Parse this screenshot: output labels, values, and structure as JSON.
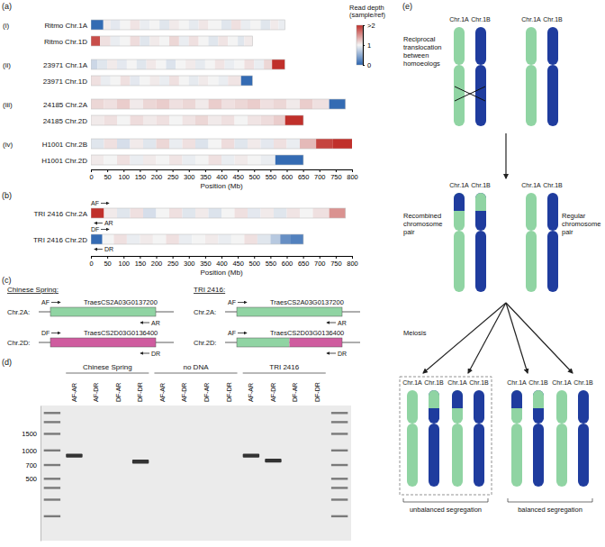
{
  "chart_data": [
    {
      "type": "heatmap",
      "title": "(a)",
      "xlim": [
        0,
        800
      ],
      "xticks": [
        0,
        50,
        100,
        150,
        200,
        250,
        300,
        350,
        400,
        450,
        500,
        550,
        600,
        650,
        700,
        750,
        800
      ],
      "xlabel": "Position (Mb)",
      "colorbar": {
        "title": [
          "Read depth",
          "(sample/ref)"
        ],
        "range": [
          0,
          2
        ],
        "ticks": [
          {
            "value": 2,
            "label": ">2"
          },
          1,
          0
        ],
        "colors": [
          "#2a64b0",
          "#f4f4f4",
          "#c0302b"
        ]
      },
      "rows": [
        {
          "group": "(i)",
          "label": "Ritmo Chr.1A",
          "bins": [
            0,
            38,
            60,
            90,
            120,
            150,
            180,
            210,
            240,
            270,
            300,
            330,
            360,
            400,
            430,
            460,
            490,
            520,
            550,
            575,
            594
          ],
          "values": [
            0.05,
            1.05,
            0.92,
            1.0,
            1.08,
            0.95,
            1.0,
            0.9,
            1.05,
            1.0,
            0.93,
            1.07,
            1.0,
            0.9,
            1.1,
            0.95,
            1.0,
            0.9,
            1.05,
            0.95
          ]
        },
        {
          "label": "Ritmo Chr.1D",
          "bins": [
            0,
            28,
            60,
            90,
            120,
            150,
            180,
            210,
            240,
            270,
            300,
            330,
            360,
            390,
            420,
            450,
            470,
            495
          ],
          "values": [
            1.85,
            1.1,
            0.95,
            1.0,
            1.12,
            0.9,
            1.05,
            1.0,
            1.15,
            0.95,
            1.1,
            1.0,
            0.9,
            1.08,
            1.0,
            0.9,
            1.05
          ]
        },
        {
          "group": "(ii)",
          "label": "23971 Chr.1A",
          "bins": [
            0,
            20,
            50,
            80,
            110,
            140,
            170,
            200,
            230,
            260,
            290,
            320,
            350,
            380,
            410,
            440,
            470,
            500,
            530,
            555,
            594
          ],
          "values": [
            0.8,
            0.9,
            1.05,
            0.92,
            1.0,
            0.9,
            1.06,
            1.0,
            0.88,
            1.0,
            1.05,
            0.93,
            1.0,
            1.08,
            0.95,
            1.0,
            1.1,
            0.95,
            1.15,
            2.3
          ]
        },
        {
          "label": "23971 Chr.1D",
          "bins": [
            0,
            30,
            60,
            90,
            120,
            150,
            180,
            210,
            240,
            270,
            300,
            330,
            360,
            390,
            420,
            460,
            495
          ],
          "values": [
            1.1,
            0.95,
            1.0,
            1.1,
            0.92,
            1.0,
            1.05,
            0.95,
            1.1,
            1.0,
            0.93,
            1.05,
            1.0,
            0.95,
            1.08,
            0.05
          ]
        },
        {
          "group": "(iii)",
          "label": "24185 Chr.2A",
          "bins": [
            0,
            40,
            80,
            120,
            160,
            200,
            240,
            280,
            320,
            360,
            400,
            440,
            480,
            520,
            560,
            600,
            640,
            680,
            730,
            780
          ],
          "values": [
            1.15,
            1.1,
            1.2,
            1.05,
            1.15,
            1.2,
            1.1,
            1.15,
            1.05,
            1.2,
            1.1,
            1.15,
            1.2,
            1.1,
            1.15,
            1.05,
            1.2,
            1.1,
            0.05
          ]
        },
        {
          "label": "24185 Chr.2D",
          "bins": [
            0,
            40,
            80,
            120,
            160,
            200,
            240,
            280,
            320,
            360,
            400,
            440,
            480,
            520,
            560,
            595,
            651
          ],
          "values": [
            1.05,
            1.1,
            1.0,
            1.12,
            1.05,
            1.1,
            1.0,
            1.08,
            1.15,
            1.05,
            1.1,
            1.0,
            1.08,
            1.12,
            1.2,
            2.2
          ]
        },
        {
          "group": "(iv)",
          "label": "H1001 Chr.2B",
          "bins": [
            0,
            40,
            80,
            120,
            160,
            200,
            240,
            280,
            320,
            360,
            400,
            440,
            480,
            520,
            560,
            600,
            640,
            690,
            740,
            801
          ],
          "values": [
            0.9,
            1.1,
            0.85,
            1.05,
            0.9,
            1.15,
            0.95,
            1.1,
            0.88,
            1.0,
            1.12,
            0.9,
            1.05,
            0.92,
            1.1,
            0.95,
            1.3,
            1.9,
            2.1
          ]
        },
        {
          "label": "H1001 Chr.2D",
          "bins": [
            0,
            40,
            80,
            120,
            160,
            200,
            240,
            280,
            320,
            360,
            400,
            440,
            480,
            520,
            565,
            651
          ],
          "values": [
            1.05,
            1.0,
            1.1,
            0.95,
            1.05,
            1.0,
            1.08,
            0.95,
            1.0,
            1.1,
            0.95,
            1.05,
            1.0,
            0.95,
            0.05
          ]
        }
      ]
    },
    {
      "type": "heatmap",
      "title": "(b)",
      "xlim": [
        0,
        800
      ],
      "xticks": [
        0,
        50,
        100,
        150,
        200,
        250,
        300,
        350,
        400,
        450,
        500,
        550,
        600,
        650,
        700,
        750,
        800
      ],
      "xlabel": "Position (Mb)",
      "rows": [
        {
          "label": "TRI 2416 Chr.2A",
          "bins": [
            0,
            40,
            80,
            120,
            160,
            200,
            240,
            280,
            320,
            360,
            400,
            440,
            480,
            520,
            560,
            600,
            640,
            680,
            730,
            780
          ],
          "values": [
            2.2,
            1.05,
            0.9,
            1.1,
            0.85,
            1.0,
            1.1,
            0.9,
            1.05,
            0.88,
            1.0,
            1.1,
            0.92,
            1.05,
            0.9,
            1.08,
            1.0,
            1.1,
            1.5
          ]
        },
        {
          "label": "TRI 2416 Chr.2D",
          "bins": [
            0,
            35,
            70,
            110,
            150,
            190,
            230,
            270,
            310,
            350,
            390,
            430,
            470,
            510,
            550,
            580,
            610,
            651
          ],
          "values": [
            0.05,
            1.0,
            1.1,
            0.95,
            1.05,
            1.0,
            1.1,
            0.95,
            1.0,
            1.05,
            0.95,
            1.0,
            1.1,
            0.9,
            0.7,
            0.3,
            0.2
          ]
        }
      ],
      "primers": [
        {
          "label": "AF",
          "row": 0,
          "position": 0,
          "direction": "forward"
        },
        {
          "label": "AR",
          "row": 0,
          "position": 8,
          "direction": "reverse"
        },
        {
          "label": "DF",
          "row": 1,
          "position": 0,
          "direction": "forward"
        },
        {
          "label": "DR",
          "row": 1,
          "position": 8,
          "direction": "reverse"
        }
      ]
    },
    {
      "type": "gel",
      "title": "(d)",
      "categories": [
        null,
        "AF-AR",
        "AF-DR",
        "DF-AR",
        "DF-DR",
        "AF-AR",
        "AF-DR",
        "DF-AR",
        "DF-DR",
        "AF-AR",
        "AF-DR",
        "DF-AR",
        "DF-DR",
        null
      ],
      "groups": [
        {
          "label": "Chinese Spring",
          "lanes": [
            1,
            4
          ]
        },
        {
          "label": "no DNA",
          "lanes": [
            5,
            8
          ]
        },
        {
          "label": "TRI 2416",
          "lanes": [
            9,
            12
          ]
        }
      ],
      "log": "y",
      "ylim": [
        3000,
        110
      ],
      "yticks": [
        1500,
        1000,
        700,
        500
      ],
      "ladder": {
        "lanes": [
          0,
          13
        ],
        "sizes": [
          2500,
          2000,
          1500,
          1000,
          700,
          500,
          400,
          300,
          200
        ]
      },
      "bands": {
        "lanes": [
          1,
          4,
          9,
          10
        ],
        "values": [
          880,
          760,
          880,
          780
        ]
      }
    }
  ],
  "panel_c": {
    "label": "(c)",
    "columns": [
      {
        "title": "Chinese Spring:",
        "genes": [
          {
            "chromosome": "Chr.2A:",
            "gene": "TraesCS2A03G0137200",
            "colors": [
              "#90d4a3"
            ],
            "forward": "AF",
            "reverse": "AR"
          },
          {
            "chromosome": "Chr.2D:",
            "gene": "TraesCS2D03G0136400",
            "colors": [
              "#cf5c9f"
            ],
            "forward": "DF",
            "reverse": "DR"
          }
        ]
      },
      {
        "title": "TRI 2416:",
        "genes": [
          {
            "chromosome": "Chr.2A:",
            "gene": "TraesCS2A03G0137200",
            "colors": [
              "#90d4a3"
            ],
            "forward": "AF",
            "reverse": "AR"
          },
          {
            "chromosome": "Chr.2D:",
            "gene": "TraesCS2D03G0136400",
            "colors": [
              "#90d4a3",
              "#cf5c9f"
            ],
            "forward": "AF",
            "reverse": "DR"
          }
        ]
      }
    ]
  },
  "panel_e": {
    "label": "(e)",
    "stages": [
      {
        "text": [
          "Reciprocal",
          "translocation",
          "between",
          "homoeologs"
        ],
        "pairs": [
          [
            {
              "name": "Chr.1A",
              "color": "#90d4a3"
            },
            {
              "name": "Chr.1B",
              "color": "#1f3c9e"
            }
          ],
          [
            {
              "name": "Chr.1A",
              "color": "#90d4a3"
            },
            {
              "name": "Chr.1B",
              "color": "#1f3c9e"
            }
          ]
        ]
      },
      {
        "text": [
          "Recombined",
          "chromosome",
          "pair"
        ],
        "right_text": [
          "Regular",
          "chromosome",
          "pair"
        ],
        "pairs": [
          [
            {
              "name": "Chr.1A",
              "color": "#90d4a3",
              "tip": "#1f3c9e"
            },
            {
              "name": "Chr.1B",
              "color": "#1f3c9e",
              "tip": "#90d4a3"
            }
          ],
          [
            {
              "name": "Chr.1A",
              "color": "#90d4a3"
            },
            {
              "name": "Chr.1B",
              "color": "#1f3c9e"
            }
          ]
        ]
      },
      {
        "text": [
          "Meiosis"
        ],
        "pairs": [
          [
            {
              "name": "Chr.1A",
              "color": "#90d4a3"
            },
            {
              "name": "Chr.1B",
              "color": "#1f3c9e",
              "tip": "#90d4a3"
            }
          ],
          [
            {
              "name": "Chr.1A",
              "color": "#90d4a3",
              "tip": "#1f3c9e"
            },
            {
              "name": "Chr.1B",
              "color": "#1f3c9e"
            }
          ],
          [
            {
              "name": "Chr.1A",
              "color": "#90d4a3",
              "tip": "#1f3c9e"
            },
            {
              "name": "Chr.1B",
              "color": "#1f3c9e",
              "tip": "#90d4a3"
            }
          ],
          [
            {
              "name": "Chr.1A",
              "color": "#90d4a3"
            },
            {
              "name": "Chr.1B",
              "color": "#1f3c9e"
            }
          ]
        ],
        "groups": [
          {
            "label": "unbalanced segregation",
            "pairs": [
              0,
              1
            ]
          },
          {
            "label": "balanced segregation",
            "pairs": [
              2,
              3
            ]
          }
        ]
      }
    ]
  }
}
